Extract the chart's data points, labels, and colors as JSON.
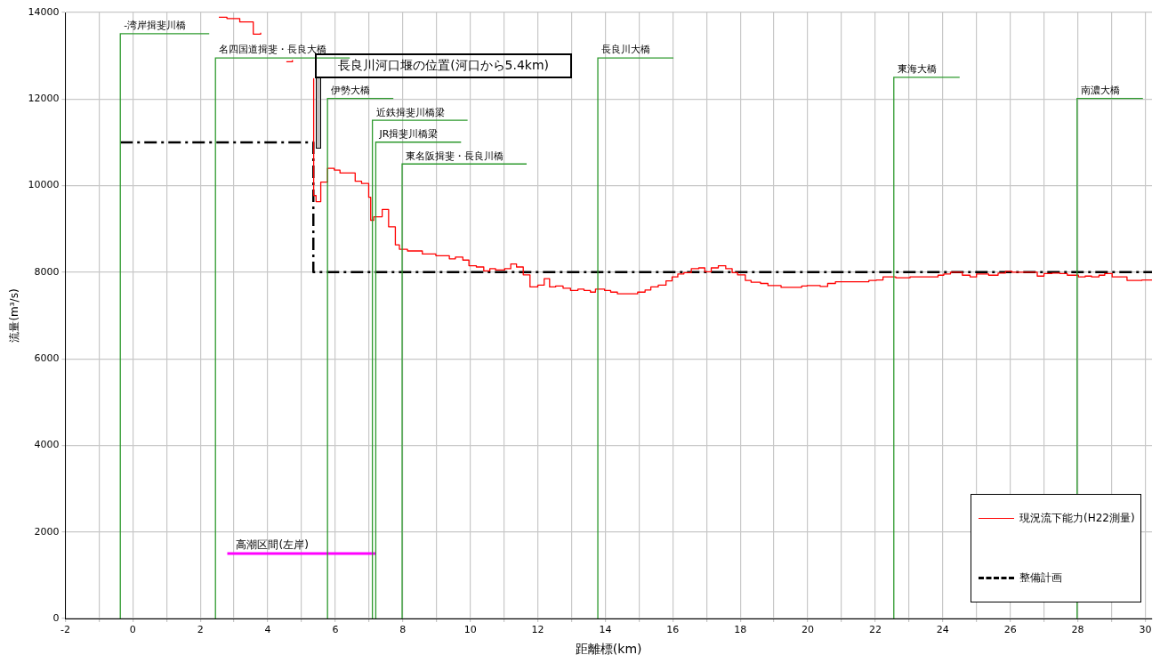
{
  "chart_data": {
    "type": "step",
    "xlabel": "距離標(km)",
    "ylabel": "流量(m³/s)",
    "xlim": [
      -2,
      30.2
    ],
    "ylim": [
      0,
      14000
    ],
    "xticks": [
      -2,
      {
        "value": -1,
        "label": null
      },
      0,
      {
        "value": 1,
        "label": null
      },
      2,
      {
        "value": 3,
        "label": null
      },
      4,
      {
        "value": 5,
        "label": null
      },
      6,
      {
        "value": 7,
        "label": null
      },
      8,
      {
        "value": 9,
        "label": null
      },
      10,
      {
        "value": 11,
        "label": null
      },
      12,
      {
        "value": 13,
        "label": null
      },
      14,
      {
        "value": 15,
        "label": null
      },
      16,
      {
        "value": 17,
        "label": null
      },
      18,
      {
        "value": 19,
        "label": null
      },
      20,
      {
        "value": 21,
        "label": null
      },
      22,
      {
        "value": 23,
        "label": null
      },
      24,
      {
        "value": 25,
        "label": null
      },
      26,
      {
        "value": 27,
        "label": null
      },
      28,
      {
        "value": 29,
        "label": null
      },
      30
    ],
    "yticks": [
      0,
      2000,
      4000,
      6000,
      8000,
      10000,
      12000,
      14000
    ],
    "grid": true,
    "legend": "bottom right",
    "series": [
      {
        "name": "現況流下能力(H22測量)",
        "color": "#ff0000",
        "line_style": "solid",
        "x": [
          2.55,
          2.79,
          3.17,
          3.57,
          3.79,
          3.97,
          4.55,
          4.73,
          4.95,
          5.35,
          5.36,
          5.43,
          5.57,
          5.77,
          5.97,
          6.14,
          6.59,
          6.78,
          6.99,
          7.05,
          7.14,
          7.39,
          7.58,
          7.78,
          7.9,
          8.14,
          8.58,
          8.98,
          9.38,
          9.56,
          9.78,
          9.96,
          10.18,
          10.4,
          10.58,
          10.75,
          11.02,
          11.2,
          11.37,
          11.57,
          11.77,
          12.0,
          12.19,
          12.35,
          12.53,
          12.75,
          12.97,
          13.19,
          13.37,
          13.56,
          13.71,
          13.98,
          14.16,
          14.36,
          14.96,
          15.18,
          15.35,
          15.57,
          15.8,
          15.98,
          16.15,
          16.33,
          16.55,
          16.77,
          16.95,
          17.14,
          17.35,
          17.57,
          17.76,
          17.92,
          18.15,
          18.32,
          18.6,
          18.82,
          19.21,
          19.82,
          19.98,
          20.37,
          20.59,
          20.82,
          21.81,
          22.03,
          22.23,
          22.61,
          23.03,
          23.86,
          24.03,
          24.23,
          24.58,
          24.81,
          25.0,
          25.36,
          25.64,
          25.86,
          26.05,
          26.25,
          26.8,
          27.0,
          27.24,
          27.47,
          27.69,
          28.02,
          28.22,
          28.41,
          28.63,
          28.8,
          29.02,
          29.46,
          29.9,
          30.2
        ],
        "values": [
          13890,
          13860,
          13780,
          13500,
          13530,
          null,
          12860,
          12900,
          null,
          12470,
          9770,
          9630,
          10080,
          10400,
          10360,
          10290,
          10100,
          10050,
          9730,
          9200,
          9280,
          9450,
          9050,
          8630,
          8530,
          8490,
          8420,
          8380,
          8310,
          8350,
          8280,
          8150,
          8120,
          8030,
          8080,
          8050,
          8080,
          8190,
          8120,
          7940,
          7660,
          7700,
          7850,
          7660,
          7680,
          7630,
          7580,
          7610,
          7580,
          7540,
          7610,
          7580,
          7540,
          7500,
          7540,
          7590,
          7660,
          7700,
          7800,
          7890,
          7960,
          7990,
          8080,
          8100,
          8010,
          8100,
          8150,
          8080,
          7990,
          7940,
          7810,
          7770,
          7740,
          7690,
          7650,
          7680,
          7690,
          7670,
          7740,
          7780,
          7810,
          7820,
          7890,
          7870,
          7890,
          7930,
          7960,
          8000,
          7930,
          7890,
          7960,
          7930,
          7980,
          8020,
          8000,
          8000,
          7910,
          7970,
          7980,
          7970,
          7930,
          7890,
          7910,
          7890,
          7930,
          7970,
          7890,
          7810,
          7820,
          7820
        ]
      },
      {
        "name": "整備計画",
        "color": "#000000",
        "line_style": "dashed",
        "x": [
          -0.37,
          5.35,
          30.2
        ],
        "values": [
          11000,
          8000,
          8000
        ]
      },
      {
        "name": "高潮区間(左岸)",
        "type": "line",
        "color": "#ff00ff",
        "line_style": "solid",
        "x": [
          2.8,
          7.2
        ],
        "values": [
          1500,
          1500
        ]
      }
    ],
    "ref_lines": [
      {
        "axis": "x",
        "value": -0.37,
        "label": "-湾岸揖斐川橋",
        "color": "#2e9a2e"
      },
      {
        "axis": "x",
        "value": 2.45,
        "label": "名四国道揖斐・長良大橋",
        "color": "#2e9a2e"
      },
      {
        "axis": "x",
        "value": 5.77,
        "label": "伊勢大橋",
        "color": "#2e9a2e"
      },
      {
        "axis": "x",
        "value": 7.1,
        "label": "近鉄揖斐川橋梁",
        "color": "#2e9a2e"
      },
      {
        "axis": "x",
        "value": 7.2,
        "label": "JR揖斐川橋梁",
        "color": "#2e9a2e"
      },
      {
        "axis": "x",
        "value": 7.98,
        "label": "東名阪揖斐・長良川橋",
        "color": "#2e9a2e"
      },
      {
        "axis": "x",
        "value": 13.78,
        "label": "長良川大橋",
        "color": "#2e9a2e"
      },
      {
        "axis": "x",
        "value": 22.55,
        "label": "東海大橋",
        "color": "#2e9a2e"
      },
      {
        "axis": "x",
        "value": 27.98,
        "label": "南濃大橋",
        "color": "#2e9a2e"
      }
    ],
    "annotations": [
      {
        "text": "長良川河口堰の位置(河口から5.4km)",
        "x": 5.4,
        "y": 12500
      }
    ]
  }
}
